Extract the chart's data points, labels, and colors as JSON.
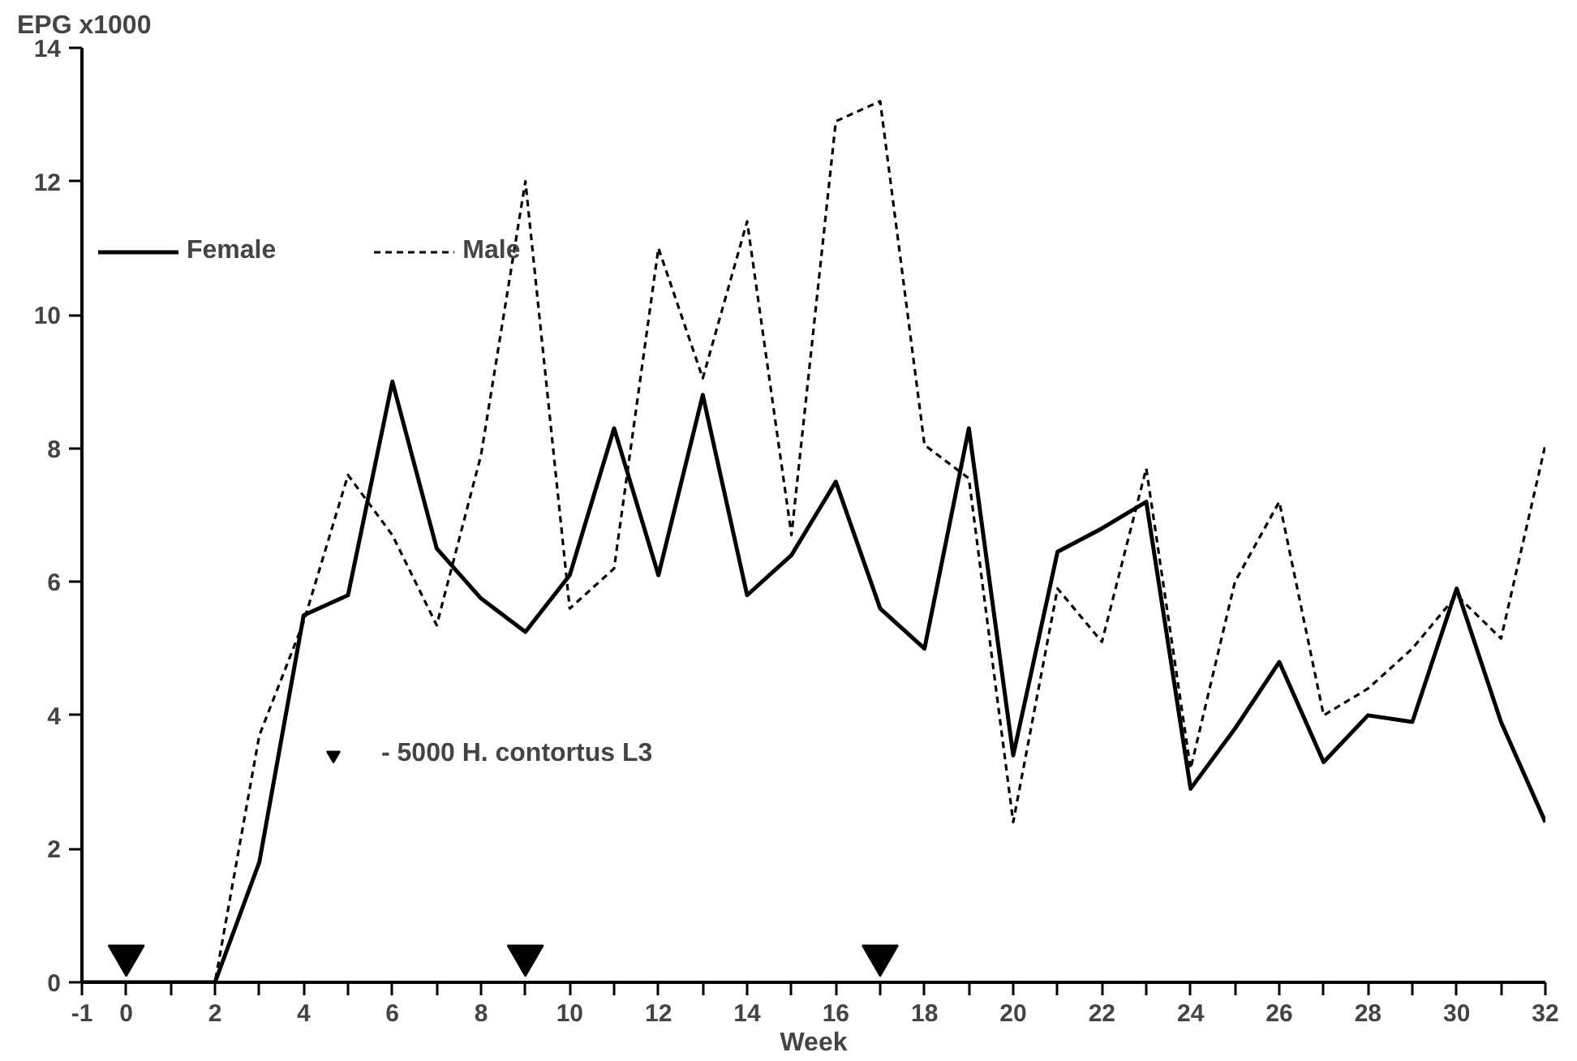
{
  "chart_data": {
    "type": "line",
    "ylabel": "EPG  x1000",
    "xlabel": "Week",
    "x": [
      -1,
      0,
      1,
      2,
      3,
      4,
      5,
      6,
      7,
      8,
      9,
      10,
      11,
      12,
      13,
      14,
      15,
      16,
      17,
      18,
      19,
      20,
      21,
      22,
      23,
      24,
      25,
      26,
      27,
      28,
      29,
      30,
      31,
      32
    ],
    "series": [
      {
        "name": "Female",
        "color": "#000000",
        "line_style": "solid",
        "values": [
          0,
          0,
          0,
          0,
          1.8,
          5.5,
          5.8,
          9.0,
          6.5,
          5.75,
          5.25,
          6.1,
          8.3,
          6.1,
          8.8,
          5.8,
          6.4,
          7.5,
          5.6,
          5.0,
          8.3,
          3.4,
          6.45,
          6.8,
          7.2,
          2.9,
          3.8,
          4.8,
          3.3,
          4.0,
          3.9,
          5.9,
          3.9,
          2.4
        ]
      },
      {
        "name": "Male",
        "color": "#000000",
        "line_style": "dashed",
        "values": [
          0,
          0,
          0,
          0,
          3.7,
          5.4,
          7.6,
          6.7,
          5.35,
          7.9,
          12.0,
          5.6,
          6.2,
          11.0,
          9.05,
          11.4,
          6.7,
          12.9,
          13.2,
          8.05,
          7.55,
          2.4,
          5.9,
          5.1,
          7.7,
          3.2,
          6.0,
          7.2,
          4.0,
          4.4,
          5.0,
          5.8,
          5.15,
          8.05
        ]
      },
      {
        "name": "- 5000 H. contortus L3",
        "type": "scatter",
        "marker": "triangle",
        "color": "#000000",
        "x": [
          0,
          9,
          17
        ],
        "values": [
          0.4,
          0.4,
          0.4
        ]
      }
    ],
    "xlim": [
      -1,
      32
    ],
    "ylim": [
      0,
      14
    ],
    "xticks": [
      -1,
      0,
      {
        "value": 1,
        "label": null
      },
      2,
      {
        "value": 3,
        "label": null
      },
      4,
      {
        "value": 5,
        "label": null
      },
      6,
      {
        "value": 7,
        "label": null
      },
      8,
      {
        "value": 9,
        "label": null
      },
      10,
      {
        "value": 11,
        "label": null
      },
      12,
      {
        "value": 13,
        "label": null
      },
      14,
      {
        "value": 15,
        "label": null
      },
      16,
      {
        "value": 17,
        "label": null
      },
      18,
      {
        "value": 19,
        "label": null
      },
      20,
      {
        "value": 21,
        "label": null
      },
      22,
      {
        "value": 23,
        "label": null
      },
      24,
      {
        "value": 25,
        "label": null
      },
      26,
      {
        "value": 27,
        "label": null
      },
      28,
      {
        "value": 29,
        "label": null
      },
      30,
      {
        "value": 31,
        "label": null
      },
      32
    ],
    "yticks": [
      0,
      2,
      4,
      6,
      8,
      10,
      12,
      14
    ],
    "grid": false,
    "legend": "top left"
  }
}
